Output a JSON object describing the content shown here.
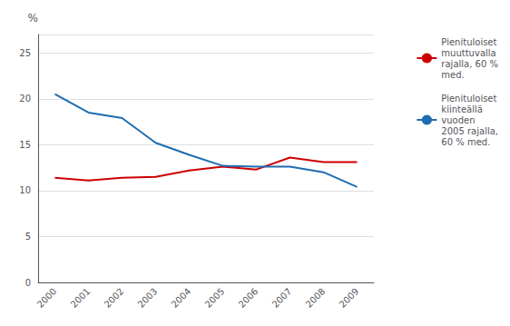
{
  "chart_data": {
    "type": "line",
    "x": [
      2000,
      2001,
      2002,
      2003,
      2004,
      2005,
      2006,
      2007,
      2008,
      2009
    ],
    "series": [
      {
        "name": "Pienituloiset\nmuuttuvalla\nrajalla, 60 %\nmed.",
        "color": "#cc0000",
        "values": [
          11.4,
          11.1,
          11.4,
          11.5,
          12.2,
          12.6,
          12.3,
          13.6,
          13.1,
          13.1
        ]
      },
      {
        "name": "Pienituloiset\nkiinteällä\nvuoden\n2005 rajalla,\n60 % med.",
        "color": "#1f6cb0",
        "values": [
          20.5,
          18.5,
          17.9,
          15.2,
          13.9,
          12.7,
          12.6,
          12.6,
          12.0,
          10.4
        ]
      }
    ],
    "ylabel": "%",
    "xlim": [
      1999.5,
      2009.5
    ],
    "xticks": [
      2000,
      2001,
      2002,
      2003,
      2004,
      2005,
      2006,
      2007,
      2008,
      2009
    ],
    "ylim": [
      0,
      27
    ],
    "yticks": [
      0,
      5,
      10,
      15,
      20,
      25
    ],
    "grid": true,
    "legend": "right"
  }
}
